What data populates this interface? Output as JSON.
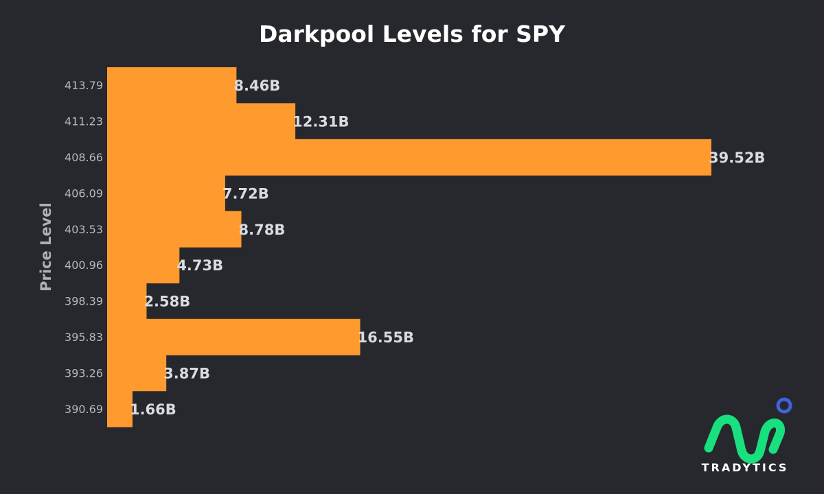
{
  "chart_data": {
    "type": "bar",
    "orientation": "horizontal",
    "title": "Darkpool Levels for SPY",
    "xlabel": "",
    "ylabel": "Price Level",
    "categories": [
      "413.79",
      "411.23",
      "408.66",
      "406.09",
      "403.53",
      "400.96",
      "398.39",
      "395.83",
      "393.26",
      "390.69"
    ],
    "values": [
      8.46,
      12.31,
      39.52,
      7.72,
      8.78,
      4.73,
      2.58,
      16.55,
      3.87,
      1.66
    ],
    "value_labels": [
      "8.46B",
      "12.31B",
      "39.52B",
      "7.72B",
      "8.78B",
      "4.73B",
      "2.58B",
      "16.55B",
      "3.87B",
      "1.66B"
    ],
    "xlim": [
      0,
      40
    ],
    "grid": false,
    "bar_color": "#ff9a2e",
    "background": "#27282d"
  },
  "brand": {
    "name": "TRADYTICS",
    "icon": "tradytics-logo-icon",
    "primary_color": "#19e07f",
    "accent_color": "#3e63dd"
  }
}
